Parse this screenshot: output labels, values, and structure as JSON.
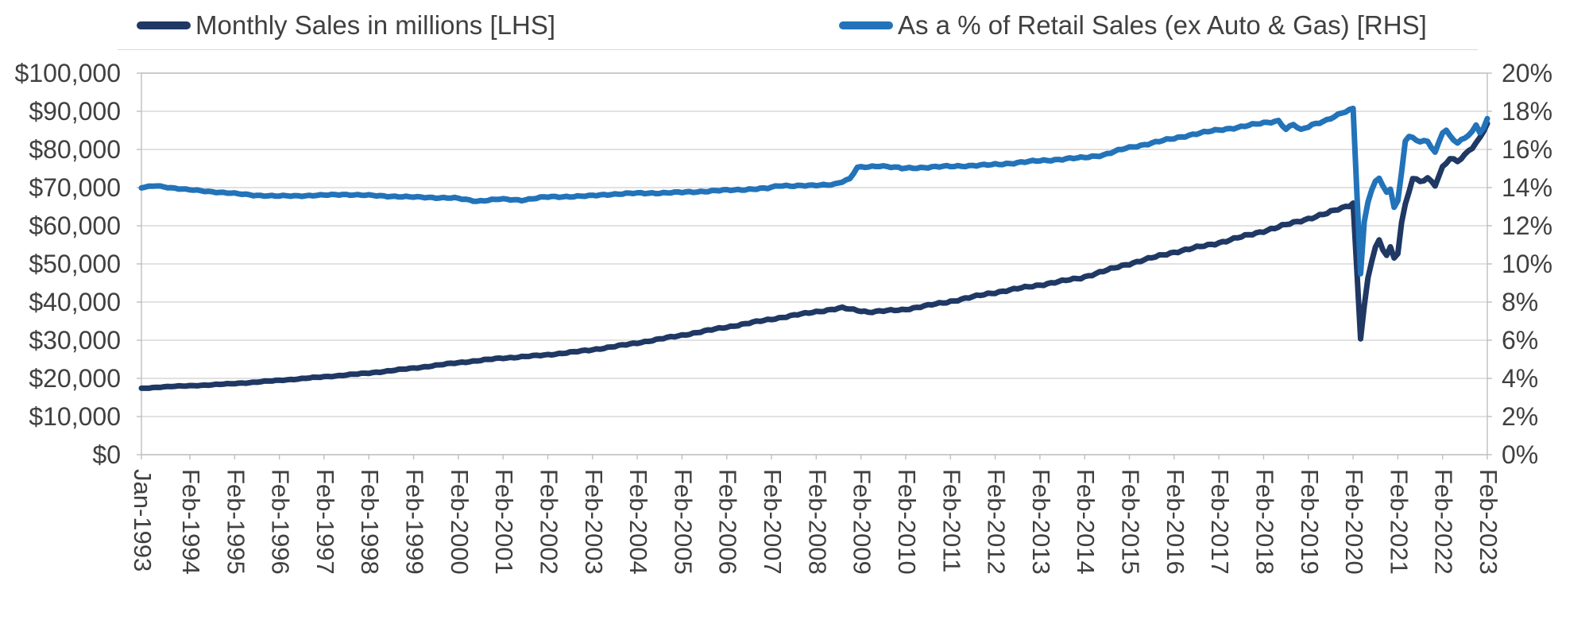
{
  "colors": {
    "series_sales": "#1f3864",
    "series_pct": "#2273b9",
    "gridline": "#d9d9d9",
    "axis_line": "#bfbfbf",
    "text": "#404040",
    "background": "#ffffff"
  },
  "legend": {
    "items": [
      {
        "label": "Monthly Sales in millions [LHS]",
        "color": "#1f3864"
      },
      {
        "label": "As a % of Retail Sales (ex Auto & Gas) [RHS]",
        "color": "#2273b9"
      }
    ]
  },
  "left_axis": {
    "tick_labels": [
      "$100,000",
      "$90,000",
      "$80,000",
      "$70,000",
      "$60,000",
      "$50,000",
      "$40,000",
      "$30,000",
      "$20,000",
      "$10,000",
      "$0"
    ],
    "min": 0,
    "max": 100000
  },
  "right_axis": {
    "tick_labels": [
      "20%",
      "18%",
      "16%",
      "14%",
      "12%",
      "10%",
      "8%",
      "6%",
      "4%",
      "2%",
      "0%"
    ],
    "min": 0,
    "max": 20
  },
  "x_axis": {
    "tick_labels": [
      "Jan-1993",
      "Feb-1994",
      "Feb-1995",
      "Feb-1996",
      "Feb-1997",
      "Feb-1998",
      "Feb-1999",
      "Feb-2000",
      "Feb-2001",
      "Feb-2002",
      "Feb-2003",
      "Feb-2004",
      "Feb-2005",
      "Feb-2006",
      "Feb-2007",
      "Feb-2008",
      "Feb-2009",
      "Feb-2010",
      "Feb-2011",
      "Feb-2012",
      "Feb-2013",
      "Feb-2014",
      "Feb-2015",
      "Feb-2016",
      "Feb-2017",
      "Feb-2018",
      "Feb-2019",
      "Feb-2020",
      "Feb-2021",
      "Feb-2022",
      "Feb-2023"
    ],
    "tick_months": [
      0,
      13,
      25,
      37,
      49,
      61,
      73,
      85,
      97,
      109,
      121,
      133,
      145,
      157,
      169,
      181,
      193,
      205,
      217,
      229,
      241,
      253,
      265,
      277,
      289,
      301,
      313,
      325,
      337,
      349,
      361
    ]
  },
  "chart_data": {
    "type": "line",
    "title": "",
    "x_start": "Jan-1993",
    "x_end": "Feb-2023",
    "months_total": 361,
    "grid": true,
    "legend_position": "top",
    "note": "Monthly series Jan-1993 to Feb-2023; values estimated from gridlines; anchors are [month_index_from_Jan1993, value], linearly interpolated per month.",
    "series": [
      {
        "name": "Monthly Sales in millions [LHS]",
        "axis": "left",
        "unit": "$M",
        "color": "#1f3864",
        "anchors": [
          [
            0,
            17300
          ],
          [
            6,
            17800
          ],
          [
            12,
            18000
          ],
          [
            24,
            18600
          ],
          [
            36,
            19400
          ],
          [
            48,
            20300
          ],
          [
            60,
            21300
          ],
          [
            72,
            22600
          ],
          [
            84,
            24000
          ],
          [
            96,
            25200
          ],
          [
            108,
            26100
          ],
          [
            120,
            27400
          ],
          [
            132,
            29100
          ],
          [
            144,
            31100
          ],
          [
            156,
            33300
          ],
          [
            168,
            35400
          ],
          [
            180,
            37300
          ],
          [
            188,
            38400
          ],
          [
            195,
            37400
          ],
          [
            204,
            38000
          ],
          [
            216,
            40000
          ],
          [
            228,
            42300
          ],
          [
            240,
            44300
          ],
          [
            252,
            46400
          ],
          [
            264,
            49800
          ],
          [
            276,
            52800
          ],
          [
            288,
            55300
          ],
          [
            300,
            58400
          ],
          [
            312,
            61600
          ],
          [
            318,
            63200
          ],
          [
            324,
            65300
          ],
          [
            325,
            66000
          ],
          [
            327,
            30500
          ],
          [
            328,
            39000
          ],
          [
            329,
            46000
          ],
          [
            330,
            50500
          ],
          [
            331,
            54500
          ],
          [
            332,
            56000
          ],
          [
            333,
            53500
          ],
          [
            334,
            52500
          ],
          [
            335,
            54500
          ],
          [
            336,
            51500
          ],
          [
            337,
            53000
          ],
          [
            338,
            61000
          ],
          [
            339,
            65500
          ],
          [
            341,
            72500
          ],
          [
            343,
            71500
          ],
          [
            345,
            72500
          ],
          [
            347,
            70800
          ],
          [
            349,
            75500
          ],
          [
            351,
            77800
          ],
          [
            353,
            76800
          ],
          [
            355,
            78500
          ],
          [
            357,
            80500
          ],
          [
            359,
            83000
          ],
          [
            360,
            85000
          ],
          [
            361,
            87000
          ]
        ]
      },
      {
        "name": "As a % of Retail Sales (ex Auto & Gas) [RHS]",
        "axis": "right",
        "unit": "%",
        "color": "#2273b9",
        "anchors": [
          [
            0,
            14.0
          ],
          [
            4,
            14.1
          ],
          [
            12,
            13.9
          ],
          [
            24,
            13.7
          ],
          [
            30,
            13.6
          ],
          [
            36,
            13.55
          ],
          [
            48,
            13.6
          ],
          [
            54,
            13.65
          ],
          [
            60,
            13.6
          ],
          [
            72,
            13.5
          ],
          [
            84,
            13.45
          ],
          [
            90,
            13.3
          ],
          [
            96,
            13.4
          ],
          [
            102,
            13.35
          ],
          [
            108,
            13.5
          ],
          [
            120,
            13.55
          ],
          [
            126,
            13.65
          ],
          [
            132,
            13.7
          ],
          [
            144,
            13.75
          ],
          [
            156,
            13.85
          ],
          [
            168,
            13.95
          ],
          [
            171,
            14.1
          ],
          [
            180,
            14.1
          ],
          [
            186,
            14.2
          ],
          [
            190,
            14.45
          ],
          [
            192,
            15.05
          ],
          [
            198,
            15.15
          ],
          [
            204,
            15.0
          ],
          [
            210,
            15.05
          ],
          [
            216,
            15.1
          ],
          [
            228,
            15.2
          ],
          [
            240,
            15.4
          ],
          [
            252,
            15.55
          ],
          [
            258,
            15.7
          ],
          [
            264,
            16.05
          ],
          [
            270,
            16.3
          ],
          [
            276,
            16.55
          ],
          [
            282,
            16.8
          ],
          [
            288,
            17.0
          ],
          [
            294,
            17.15
          ],
          [
            300,
            17.35
          ],
          [
            305,
            17.5
          ],
          [
            307,
            17.05
          ],
          [
            309,
            17.3
          ],
          [
            311,
            17.0
          ],
          [
            314,
            17.3
          ],
          [
            318,
            17.55
          ],
          [
            322,
            17.9
          ],
          [
            325,
            18.15
          ],
          [
            327,
            9.5
          ],
          [
            328,
            12.2
          ],
          [
            329,
            13.3
          ],
          [
            330,
            13.9
          ],
          [
            331,
            14.3
          ],
          [
            332,
            14.5
          ],
          [
            333,
            14.1
          ],
          [
            334,
            13.7
          ],
          [
            335,
            13.9
          ],
          [
            336,
            13.0
          ],
          [
            337,
            13.3
          ],
          [
            338,
            14.8
          ],
          [
            339,
            16.5
          ],
          [
            340,
            16.7
          ],
          [
            341,
            16.6
          ],
          [
            343,
            16.4
          ],
          [
            345,
            16.4
          ],
          [
            347,
            15.8
          ],
          [
            349,
            16.9
          ],
          [
            350,
            17.0
          ],
          [
            351,
            16.7
          ],
          [
            353,
            16.35
          ],
          [
            355,
            16.6
          ],
          [
            357,
            16.9
          ],
          [
            358,
            17.25
          ],
          [
            359,
            16.9
          ],
          [
            360,
            17.1
          ],
          [
            361,
            17.6
          ]
        ]
      }
    ]
  }
}
